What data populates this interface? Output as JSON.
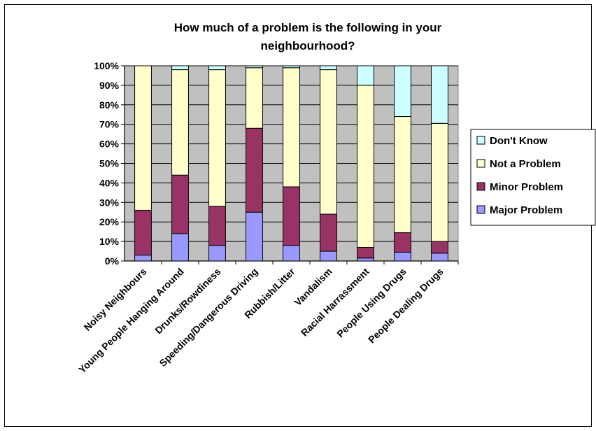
{
  "chart_data": {
    "type": "bar",
    "stacked": true,
    "title_lines": [
      "How much of a problem is the following in your",
      "neighbourhood?"
    ],
    "categories": [
      "Noisy Neighbours",
      "Young People Hanging Around",
      "Drunks/Rowdiness",
      "Speeding/Dangerous Driving",
      "Rubbish/Litter",
      "Vandalism",
      "Racial Harrassment",
      "People Using Drugs",
      "People Dealing Drugs"
    ],
    "y_ticks": [
      "0%",
      "10%",
      "20%",
      "30%",
      "40%",
      "50%",
      "60%",
      "70%",
      "80%",
      "90%",
      "100%"
    ],
    "ylim": [
      0,
      100
    ],
    "series": [
      {
        "name": "Major Problem",
        "color": "#9999ff",
        "values": [
          3,
          14,
          8,
          25,
          8,
          5,
          1.5,
          4.5,
          4
        ]
      },
      {
        "name": "Minor Problem",
        "color": "#993366",
        "values": [
          23,
          30,
          20,
          43,
          30,
          19,
          5.5,
          10,
          6
        ]
      },
      {
        "name": "Not a Problem",
        "color": "#ffffcc",
        "values": [
          74,
          54,
          70,
          31,
          61,
          74,
          83,
          59.5,
          60.5
        ]
      },
      {
        "name": "Don't Know",
        "color": "#ccffff",
        "values": [
          0,
          2,
          2,
          1,
          1,
          2,
          10,
          26,
          29.5
        ]
      }
    ],
    "legend_order": [
      "Don't Know",
      "Not a Problem",
      "Minor Problem",
      "Major Problem"
    ],
    "legend_position": "right",
    "plot_background": "#c0c0c0",
    "grid": true
  }
}
